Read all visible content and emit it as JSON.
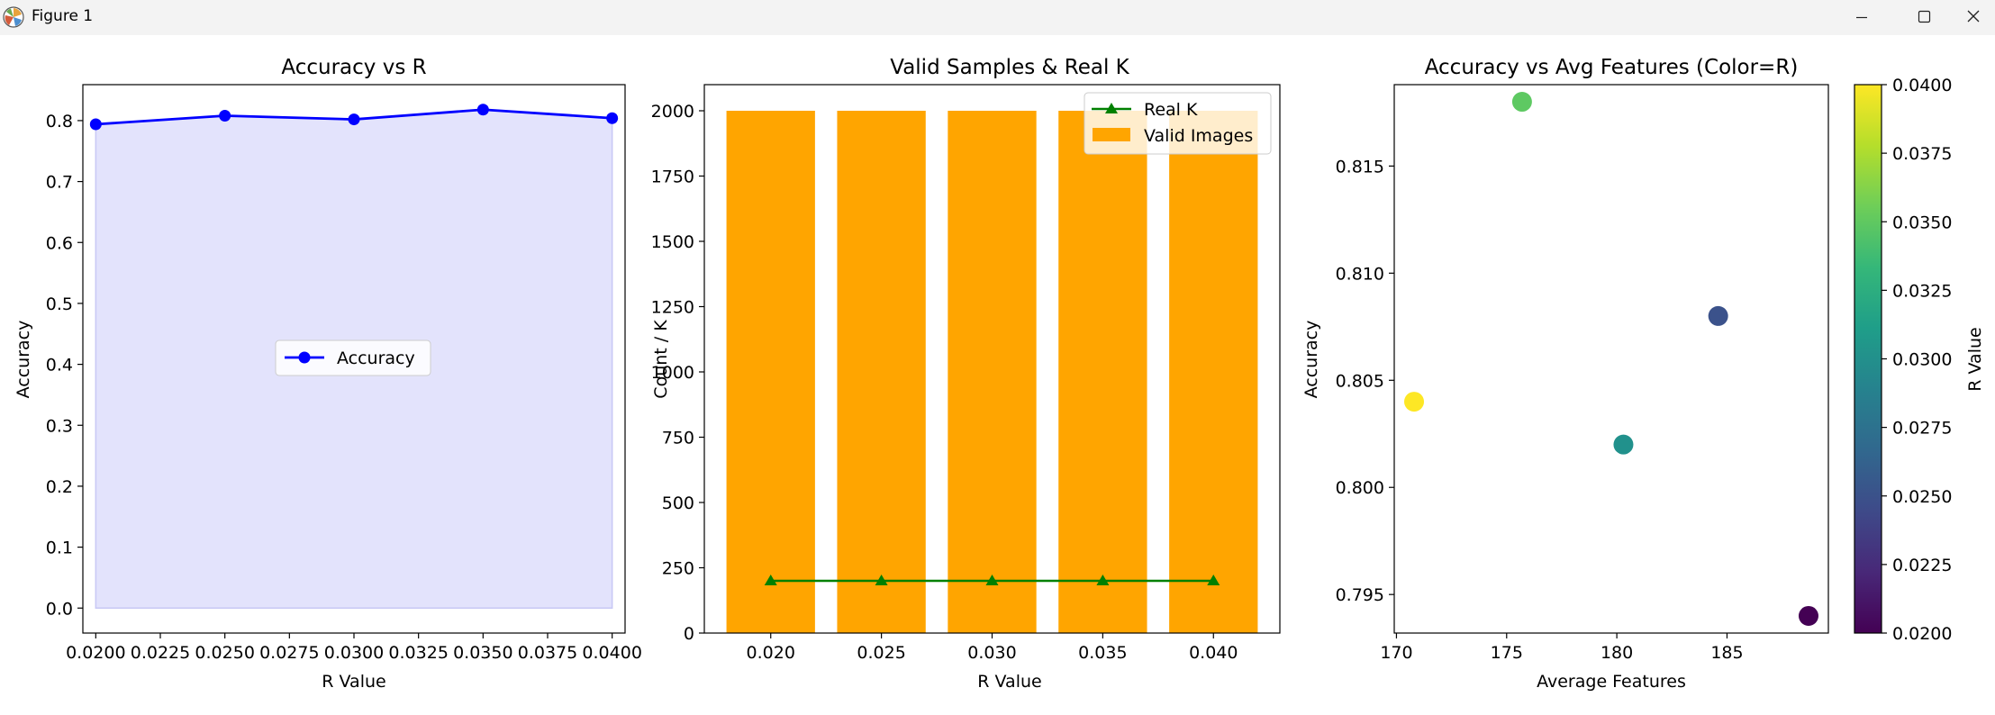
{
  "window": {
    "title": "Figure 1",
    "app_icon": "matplotlib-icon",
    "controls": [
      "minimize-icon",
      "maximize-icon",
      "close-icon"
    ]
  },
  "chart_data": [
    {
      "type": "line",
      "title": "Accuracy vs R",
      "xlabel": "R Value",
      "ylabel": "Accuracy",
      "x": [
        0.02,
        0.025,
        0.03,
        0.035,
        0.04
      ],
      "series": [
        {
          "name": "Accuracy",
          "values": [
            0.794,
            0.808,
            0.802,
            0.818,
            0.804
          ],
          "color": "#0000ff",
          "marker": "circle"
        }
      ],
      "fill_under": {
        "color": "#e3e3fc",
        "edge": "#c8c8f5"
      },
      "xlim": [
        0.0195,
        0.0405
      ],
      "ylim": [
        -0.041,
        0.859
      ],
      "xticks": [
        "0.0200",
        "0.0225",
        "0.0250",
        "0.0275",
        "0.0300",
        "0.0325",
        "0.0350",
        "0.0375",
        "0.0400"
      ],
      "xtick_values": [
        0.02,
        0.0225,
        0.025,
        0.0275,
        0.03,
        0.0325,
        0.035,
        0.0375,
        0.04
      ],
      "yticks": [
        "0.0",
        "0.1",
        "0.2",
        "0.3",
        "0.4",
        "0.5",
        "0.6",
        "0.7",
        "0.8"
      ],
      "ytick_values": [
        0,
        0.1,
        0.2,
        0.3,
        0.4,
        0.5,
        0.6,
        0.7,
        0.8
      ],
      "legend": "center",
      "grid": false
    },
    {
      "type": "bar",
      "title": "Valid Samples & Real K",
      "xlabel": "R Value",
      "ylabel": "Count / K",
      "x": [
        0.02,
        0.025,
        0.03,
        0.035,
        0.04
      ],
      "bar_width": 0.004,
      "series": [
        {
          "name": "Valid Images",
          "kind": "bar",
          "values": [
            2000,
            2000,
            2000,
            2000,
            2000
          ],
          "color": "#ffa500"
        },
        {
          "name": "Real K",
          "kind": "line",
          "values": [
            200,
            200,
            200,
            200,
            200
          ],
          "color": "#008000",
          "marker": "triangle"
        }
      ],
      "xlim": [
        0.017,
        0.043
      ],
      "ylim": [
        0,
        2100
      ],
      "xticks": [
        "0.020",
        "0.025",
        "0.030",
        "0.035",
        "0.040"
      ],
      "xtick_values": [
        0.02,
        0.025,
        0.03,
        0.035,
        0.04
      ],
      "yticks": [
        "0",
        "250",
        "500",
        "750",
        "1000",
        "1250",
        "1500",
        "1750",
        "2000"
      ],
      "ytick_values": [
        0,
        250,
        500,
        750,
        1000,
        1250,
        1500,
        1750,
        2000
      ],
      "legend": "top-right",
      "grid": false
    },
    {
      "type": "scatter",
      "title": "Accuracy vs Avg Features (Color=R)",
      "xlabel": "Average Features",
      "ylabel": "Accuracy",
      "points": [
        {
          "x": 188.7,
          "y": 0.794,
          "r": 0.02,
          "color": "#440154"
        },
        {
          "x": 184.6,
          "y": 0.808,
          "r": 0.025,
          "color": "#3b528b"
        },
        {
          "x": 180.3,
          "y": 0.802,
          "r": 0.03,
          "color": "#21918c"
        },
        {
          "x": 175.7,
          "y": 0.818,
          "r": 0.035,
          "color": "#5ec962"
        },
        {
          "x": 170.8,
          "y": 0.804,
          "r": 0.04,
          "color": "#fde725"
        }
      ],
      "xlim": [
        169.9,
        189.6
      ],
      "ylim": [
        0.7932,
        0.8188
      ],
      "xticks": [
        "170",
        "175",
        "180",
        "185"
      ],
      "xtick_values": [
        170,
        175,
        180,
        185
      ],
      "yticks": [
        "0.795",
        "0.800",
        "0.805",
        "0.810",
        "0.815"
      ],
      "ytick_values": [
        0.795,
        0.8,
        0.805,
        0.81,
        0.815
      ],
      "colorbar": {
        "label": "R Value",
        "colormap": "viridis",
        "range": [
          0.02,
          0.04
        ],
        "stops": [
          "#440154",
          "#482878",
          "#3e4a89",
          "#31688e",
          "#26828e",
          "#1f9e89",
          "#35b779",
          "#6ece58",
          "#b5de2b",
          "#fde725"
        ],
        "ticks": [
          "0.0200",
          "0.0225",
          "0.0250",
          "0.0275",
          "0.0300",
          "0.0325",
          "0.0350",
          "0.0375",
          "0.0400"
        ],
        "tick_values": [
          0.02,
          0.0225,
          0.025,
          0.0275,
          0.03,
          0.0325,
          0.035,
          0.0375,
          0.04
        ]
      },
      "grid": false
    }
  ]
}
